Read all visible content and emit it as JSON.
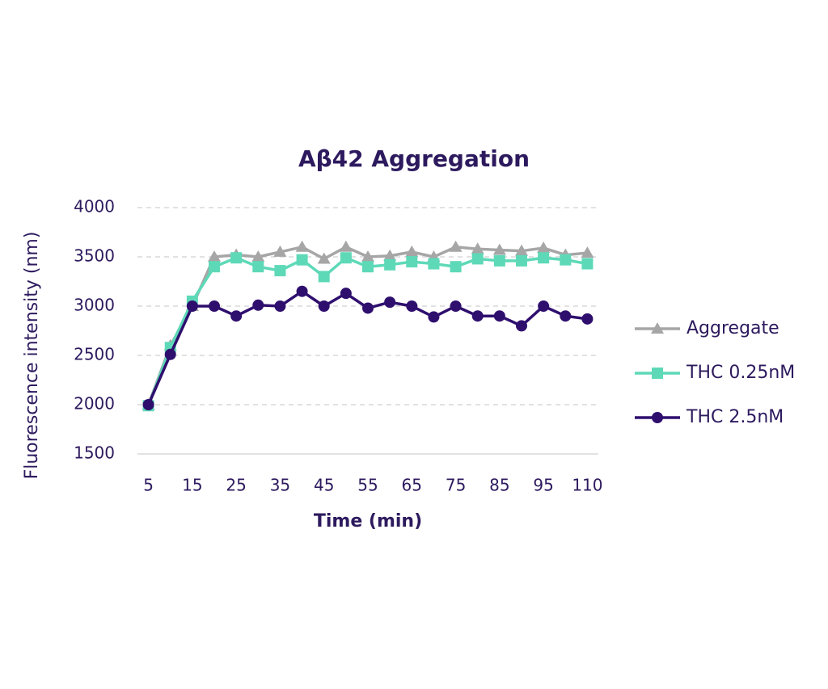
{
  "chart_data": {
    "type": "line",
    "title": "Aβ42 Aggregation",
    "x_label": "Time (min)",
    "y_label": "Fluorescence intensity (nm)",
    "categories": [
      5,
      null,
      15,
      null,
      25,
      null,
      35,
      null,
      45,
      null,
      55,
      null,
      65,
      null,
      75,
      null,
      85,
      null,
      95,
      null,
      110
    ],
    "series": [
      {
        "name": "Aggregate",
        "color": "#a6a6a6",
        "marker": "triangle",
        "values": [
          2000,
          2600,
          3000,
          3500,
          3520,
          3500,
          3550,
          3600,
          3480,
          3600,
          3500,
          3510,
          3550,
          3500,
          3600,
          3580,
          3570,
          3560,
          3590,
          3520,
          3540
        ]
      },
      {
        "name": "THC 0.25nM",
        "color": "#5ed9b8",
        "marker": "square",
        "values": [
          1990,
          2580,
          3050,
          3400,
          3490,
          3400,
          3360,
          3470,
          3300,
          3490,
          3400,
          3420,
          3450,
          3430,
          3400,
          3480,
          3460,
          3460,
          3490,
          3470,
          3430
        ]
      },
      {
        "name": "THC 2.5nM",
        "color": "#2f0f6e",
        "marker": "circle",
        "values": [
          2000,
          2510,
          3000,
          3000,
          2900,
          3010,
          3000,
          3150,
          3000,
          3130,
          2980,
          3040,
          3000,
          2890,
          3000,
          2900,
          2900,
          2800,
          3000,
          2900,
          2870
        ]
      }
    ],
    "ylim": [
      1500,
      4000
    ],
    "yticks": [
      1500,
      2000,
      2500,
      3000,
      3500,
      4000
    ],
    "grid": true,
    "legend": "right"
  }
}
